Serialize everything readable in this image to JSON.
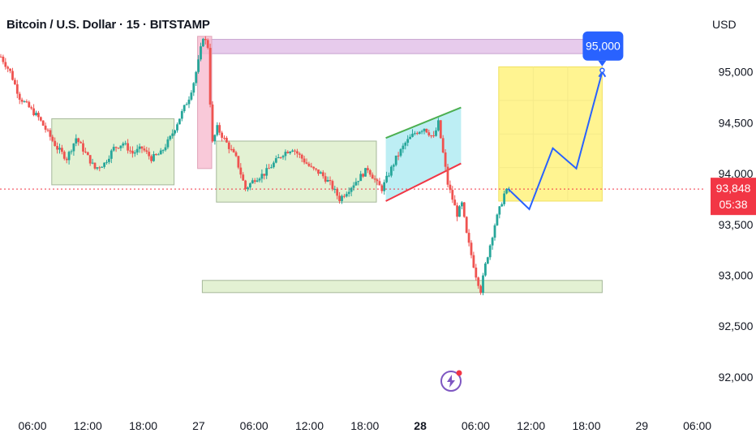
{
  "header": {
    "title": "Bitcoin / U.S. Dollar · 15 · BITSTAMP",
    "currency": "USD"
  },
  "colors": {
    "up": "#26a69a",
    "down": "#ef5350",
    "current_price": "#f23645",
    "projection": "#2962ff",
    "target_badge": "#2962ff",
    "resistance_zone": "#e1bee7",
    "support_zone": "#dcedc8",
    "wedge_fill": "#b2ebf2",
    "wedge_top": "#4caf50",
    "wedge_bottom": "#f23645",
    "target_zone": "#fff176",
    "spike_zone": "#f8bbd0"
  },
  "chart_data": {
    "type": "candlestick",
    "symbol": "Bitcoin / U.S. Dollar",
    "interval": "15",
    "exchange": "BITSTAMP",
    "y_ticks": [
      92000,
      92500,
      93000,
      93500,
      94000,
      94500,
      95000
    ],
    "y_tick_labels": [
      "92,000",
      "92,500",
      "93,000",
      "93,500",
      "94,000",
      "94,500",
      "95,000"
    ],
    "ylim": [
      91800,
      95500
    ],
    "x_ticks": [
      {
        "label": "06:00",
        "bold": false
      },
      {
        "label": "12:00",
        "bold": false
      },
      {
        "label": "18:00",
        "bold": false
      },
      {
        "label": "27",
        "bold": false
      },
      {
        "label": "06:00",
        "bold": false
      },
      {
        "label": "12:00",
        "bold": false
      },
      {
        "label": "18:00",
        "bold": false
      },
      {
        "label": "28",
        "bold": true
      },
      {
        "label": "06:00",
        "bold": false
      },
      {
        "label": "12:00",
        "bold": false
      },
      {
        "label": "18:00",
        "bold": false
      },
      {
        "label": "29",
        "bold": false
      },
      {
        "label": "06:00",
        "bold": false
      }
    ],
    "current_price": {
      "value": 93848,
      "label": "93,848",
      "countdown": "05:38"
    },
    "target": {
      "value": 95000,
      "label": "95,000"
    },
    "price_path": [
      [
        0,
        95150
      ],
      [
        4,
        95000
      ],
      [
        8,
        94750
      ],
      [
        12,
        94650
      ],
      [
        16,
        94550
      ],
      [
        20,
        94400
      ],
      [
        24,
        94250
      ],
      [
        28,
        94150
      ],
      [
        32,
        94350
      ],
      [
        36,
        94200
      ],
      [
        40,
        94050
      ],
      [
        44,
        94100
      ],
      [
        48,
        94250
      ],
      [
        52,
        94300
      ],
      [
        56,
        94200
      ],
      [
        60,
        94250
      ],
      [
        64,
        94150
      ],
      [
        68,
        94200
      ],
      [
        72,
        94350
      ],
      [
        76,
        94550
      ],
      [
        80,
        94750
      ],
      [
        82,
        94900
      ],
      [
        84,
        95100
      ],
      [
        86,
        95350
      ],
      [
        88,
        95250
      ],
      [
        89,
        94700
      ],
      [
        90,
        94300
      ],
      [
        92,
        94450
      ],
      [
        96,
        94300
      ],
      [
        100,
        94150
      ],
      [
        104,
        93850
      ],
      [
        108,
        93950
      ],
      [
        112,
        94000
      ],
      [
        116,
        94100
      ],
      [
        120,
        94200
      ],
      [
        124,
        94250
      ],
      [
        128,
        94150
      ],
      [
        132,
        94050
      ],
      [
        136,
        94000
      ],
      [
        140,
        93900
      ],
      [
        144,
        93750
      ],
      [
        148,
        93850
      ],
      [
        152,
        93950
      ],
      [
        156,
        94050
      ],
      [
        160,
        93900
      ],
      [
        162,
        93850
      ],
      [
        164,
        93950
      ],
      [
        168,
        94150
      ],
      [
        172,
        94300
      ],
      [
        176,
        94400
      ],
      [
        180,
        94450
      ],
      [
        184,
        94350
      ],
      [
        186,
        94500
      ],
      [
        188,
        94200
      ],
      [
        190,
        93900
      ],
      [
        192,
        93750
      ],
      [
        194,
        93600
      ],
      [
        196,
        93700
      ],
      [
        198,
        93400
      ],
      [
        200,
        93200
      ],
      [
        202,
        93000
      ],
      [
        204,
        92850
      ],
      [
        206,
        93100
      ],
      [
        208,
        93300
      ],
      [
        210,
        93500
      ],
      [
        212,
        93650
      ],
      [
        214,
        93800
      ],
      [
        216,
        93850
      ]
    ],
    "projection_path": [
      [
        216,
        93850
      ],
      [
        225,
        93650
      ],
      [
        235,
        94250
      ],
      [
        245,
        94050
      ],
      [
        256,
        95000
      ]
    ],
    "zones": [
      {
        "name": "resistance-zone",
        "t0": 86,
        "t1": 256,
        "p_low": 95180,
        "p_high": 95320
      },
      {
        "name": "spike-zone",
        "t0": 84,
        "t1": 90,
        "p_low": 94050,
        "p_high": 95350
      },
      {
        "name": "range-zone-1",
        "t0": 22,
        "t1": 74,
        "p_low": 93890,
        "p_high": 94540
      },
      {
        "name": "range-zone-2",
        "t0": 92,
        "t1": 160,
        "p_low": 93720,
        "p_high": 94320
      },
      {
        "name": "support-zone",
        "t0": 86,
        "t1": 256,
        "p_low": 92830,
        "p_high": 92950
      },
      {
        "name": "target-zone",
        "t0": 212,
        "t1": 256,
        "p_low": 93730,
        "p_high": 95050
      }
    ],
    "wedge": {
      "t0": 164,
      "t1": 196,
      "top": [
        94350,
        94650
      ],
      "bottom": [
        93730,
        94100
      ]
    },
    "grid": false
  }
}
